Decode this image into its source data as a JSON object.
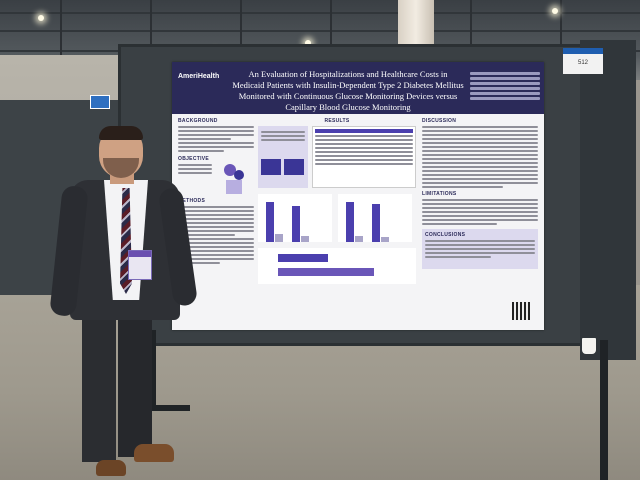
{
  "scene": "Researcher standing beside an academic research poster at a conference exhibit hall",
  "poster": {
    "logo_text": "AmeriHealth",
    "title": "An Evaluation of Hospitalizations and Healthcare Costs in Medicaid Patients with Insulin-Dependent Type 2 Diabetes Mellitus Monitored with Continuous Glucose Monitoring Devices versus Capillary Blood Glucose Monitoring",
    "sections": {
      "background": "BACKGROUND",
      "objective": "OBJECTIVE",
      "methods": "METHODS",
      "results": "RESULTS",
      "discussion": "DISCUSSION",
      "limitations": "LIMITATIONS",
      "conclusions": "CONCLUSIONS"
    }
  },
  "booth_sign": "512",
  "colors": {
    "poster_header": "#2b2a59",
    "chart_bar": "#4b3fae",
    "board": "#3a4044"
  },
  "icons": [
    "ceiling-light-icon",
    "qr-code-icon",
    "name-badge-icon"
  ]
}
